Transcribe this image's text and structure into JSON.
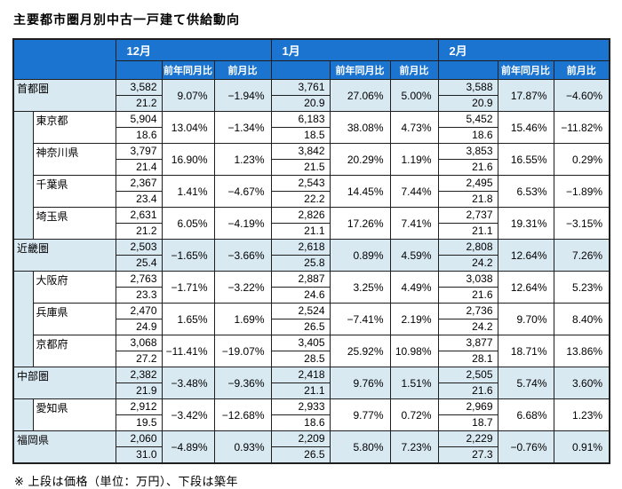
{
  "colors": {
    "header_bg": "#1a74d0",
    "header_text": "#ffffff",
    "region_row_bg": "#d9e9f2",
    "pref_row_bg": "#ffffff",
    "border": "#1f1f1f"
  },
  "chart_data": {
    "type": "table",
    "title": "主要都市圏月別中古一戸建て供給動向",
    "unit_note": "※ 上段は価格（単位：万円）、下段は築年",
    "month_columns": [
      "12月",
      "1月",
      "2月"
    ],
    "sub_columns": [
      "前年同月比",
      "前月比"
    ],
    "value_rows_per_cell": [
      "価格(万円)",
      "築年"
    ],
    "rows": [
      {
        "name": "首都圏",
        "level": "region",
        "months": [
          {
            "price": 3582,
            "age": 21.2,
            "yoy": 9.07,
            "mom": -1.94
          },
          {
            "price": 3761,
            "age": 20.9,
            "yoy": 27.06,
            "mom": 5.0
          },
          {
            "price": 3588,
            "age": 20.9,
            "yoy": 17.87,
            "mom": -4.6
          }
        ]
      },
      {
        "name": "東京都",
        "level": "pref",
        "indent_span": 8,
        "months": [
          {
            "price": 5904,
            "age": 18.6,
            "yoy": 13.04,
            "mom": -1.34
          },
          {
            "price": 6183,
            "age": 18.5,
            "yoy": 38.08,
            "mom": 4.73
          },
          {
            "price": 5452,
            "age": 18.6,
            "yoy": 15.46,
            "mom": -11.82
          }
        ]
      },
      {
        "name": "神奈川県",
        "level": "pref",
        "months": [
          {
            "price": 3797,
            "age": 21.4,
            "yoy": 16.9,
            "mom": 1.23
          },
          {
            "price": 3842,
            "age": 21.5,
            "yoy": 20.29,
            "mom": 1.19
          },
          {
            "price": 3853,
            "age": 21.6,
            "yoy": 16.55,
            "mom": 0.29
          }
        ]
      },
      {
        "name": "千葉県",
        "level": "pref",
        "months": [
          {
            "price": 2367,
            "age": 23.4,
            "yoy": 1.41,
            "mom": -4.67
          },
          {
            "price": 2543,
            "age": 22.2,
            "yoy": 14.45,
            "mom": 7.44
          },
          {
            "price": 2495,
            "age": 21.8,
            "yoy": 6.53,
            "mom": -1.89
          }
        ]
      },
      {
        "name": "埼玉県",
        "level": "pref",
        "months": [
          {
            "price": 2631,
            "age": 21.2,
            "yoy": 6.05,
            "mom": -4.19
          },
          {
            "price": 2826,
            "age": 21.1,
            "yoy": 17.26,
            "mom": 7.41
          },
          {
            "price": 2737,
            "age": 21.1,
            "yoy": 19.31,
            "mom": -3.15
          }
        ]
      },
      {
        "name": "近畿圏",
        "level": "region",
        "months": [
          {
            "price": 2503,
            "age": 25.4,
            "yoy": -1.65,
            "mom": -3.66
          },
          {
            "price": 2618,
            "age": 25.8,
            "yoy": 0.89,
            "mom": 4.59
          },
          {
            "price": 2808,
            "age": 24.2,
            "yoy": 12.64,
            "mom": 7.26
          }
        ]
      },
      {
        "name": "大阪府",
        "level": "pref",
        "indent_span": 6,
        "months": [
          {
            "price": 2763,
            "age": 23.3,
            "yoy": -1.71,
            "mom": -3.22
          },
          {
            "price": 2887,
            "age": 24.6,
            "yoy": 3.25,
            "mom": 4.49
          },
          {
            "price": 3038,
            "age": 21.6,
            "yoy": 12.64,
            "mom": 5.23
          }
        ]
      },
      {
        "name": "兵庫県",
        "level": "pref",
        "months": [
          {
            "price": 2470,
            "age": 24.9,
            "yoy": 1.65,
            "mom": 1.69
          },
          {
            "price": 2524,
            "age": 26.5,
            "yoy": -7.41,
            "mom": 2.19
          },
          {
            "price": 2736,
            "age": 24.2,
            "yoy": 9.7,
            "mom": 8.4
          }
        ]
      },
      {
        "name": "京都府",
        "level": "pref",
        "months": [
          {
            "price": 3068,
            "age": 27.2,
            "yoy": -11.41,
            "mom": -19.07
          },
          {
            "price": 3405,
            "age": 28.5,
            "yoy": 25.92,
            "mom": 10.98
          },
          {
            "price": 3877,
            "age": 28.1,
            "yoy": 18.71,
            "mom": 13.86
          }
        ]
      },
      {
        "name": "中部圏",
        "level": "region",
        "months": [
          {
            "price": 2382,
            "age": 21.9,
            "yoy": -3.48,
            "mom": -9.36
          },
          {
            "price": 2418,
            "age": 21.1,
            "yoy": 9.76,
            "mom": 1.51
          },
          {
            "price": 2505,
            "age": 21.6,
            "yoy": 5.74,
            "mom": 3.6
          }
        ]
      },
      {
        "name": "愛知県",
        "level": "pref",
        "indent_span": 2,
        "months": [
          {
            "price": 2912,
            "age": 19.5,
            "yoy": -3.42,
            "mom": -12.68
          },
          {
            "price": 2933,
            "age": 18.6,
            "yoy": 9.77,
            "mom": 0.72
          },
          {
            "price": 2969,
            "age": 18.7,
            "yoy": 6.68,
            "mom": 1.23
          }
        ]
      },
      {
        "name": "福岡県",
        "level": "region",
        "months": [
          {
            "price": 2060,
            "age": 31.0,
            "yoy": -4.89,
            "mom": 0.93
          },
          {
            "price": 2209,
            "age": 26.5,
            "yoy": 5.8,
            "mom": 7.23
          },
          {
            "price": 2229,
            "age": 27.3,
            "yoy": -0.76,
            "mom": 0.91
          }
        ]
      }
    ]
  }
}
